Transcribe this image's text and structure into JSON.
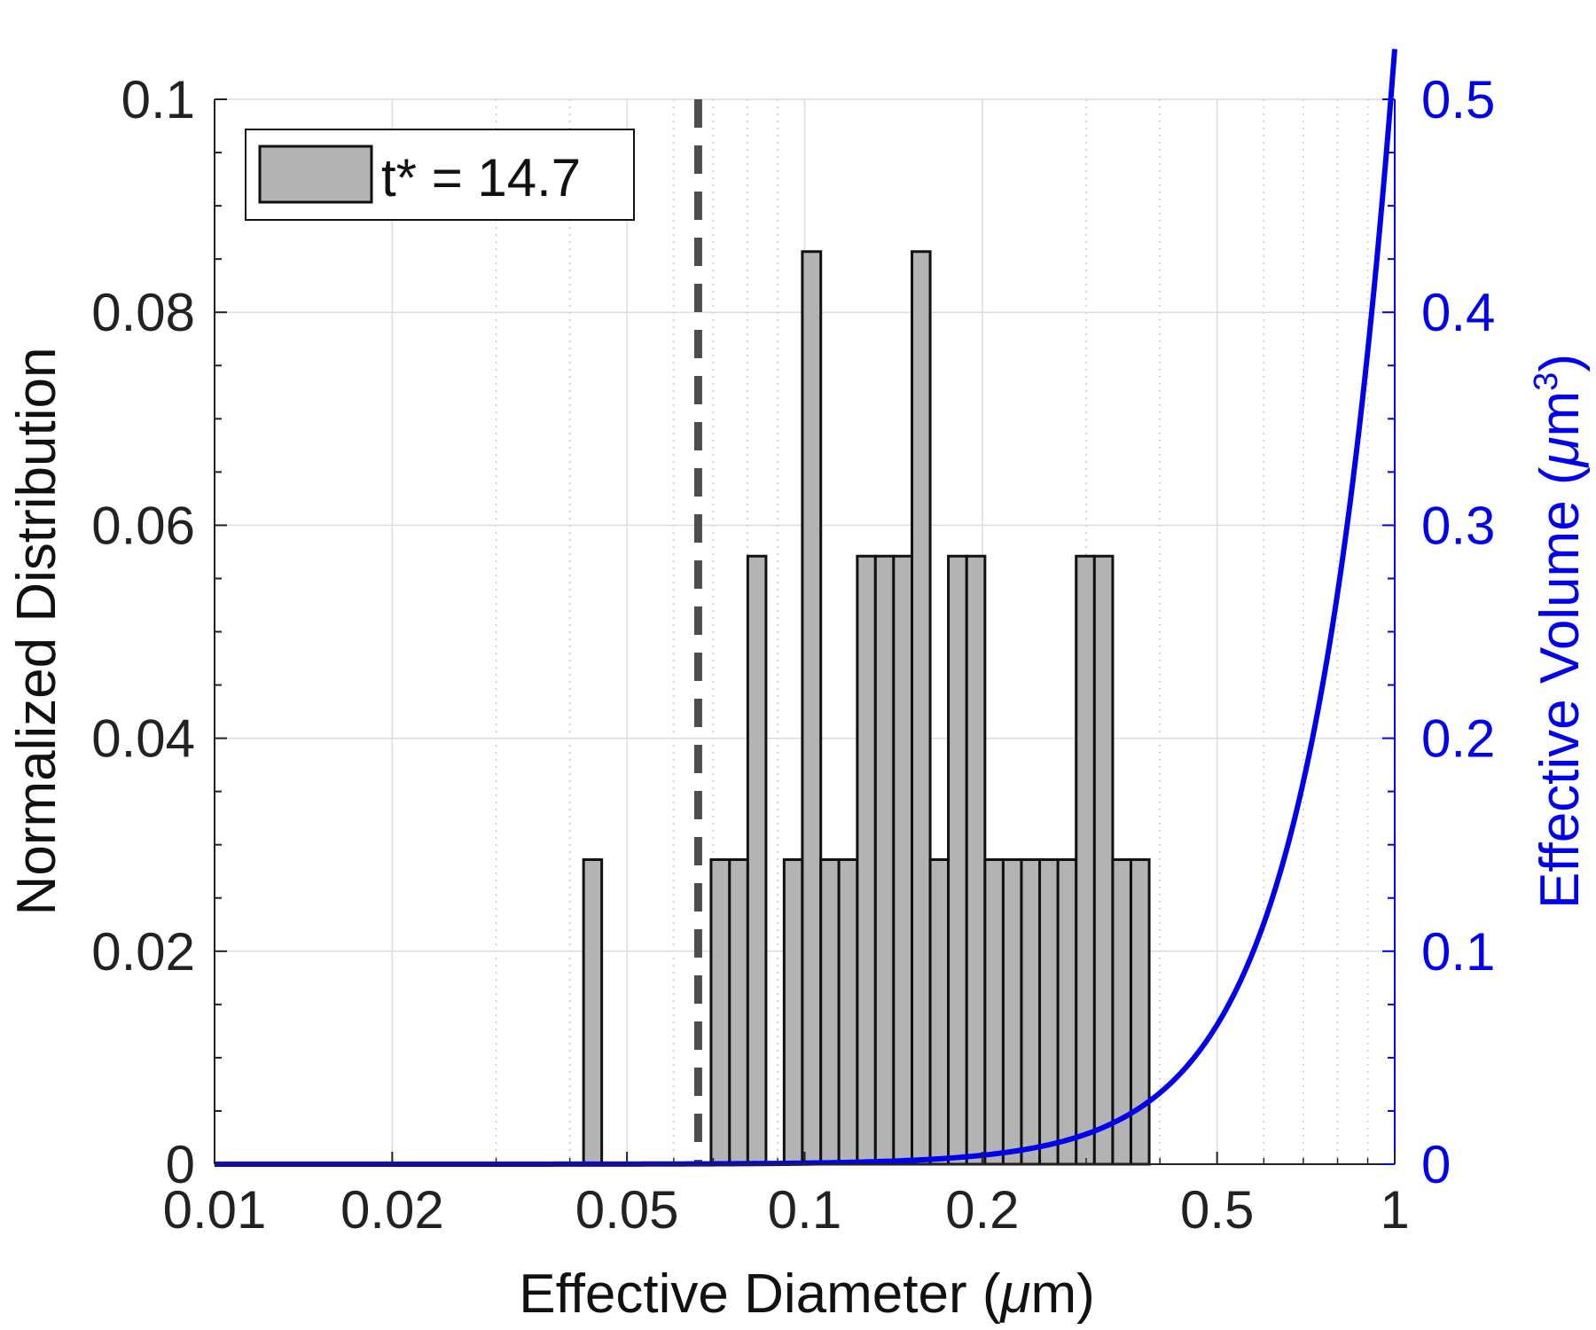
{
  "chart_data": {
    "type": "bar",
    "x_scale": "log",
    "xlim": [
      0.01,
      1
    ],
    "ylim": [
      0,
      0.1
    ],
    "y2lim": [
      0,
      0.5
    ],
    "grid": true,
    "legend_placement": "top-left",
    "xlabel_text": "Effective Diameter (",
    "xlabel_mu": "μ",
    "xlabel_tail": "m)",
    "ylabel": "Normalized Distribution",
    "y2label_text": "Effective Volume (",
    "y2label_mu": "μ",
    "y2label_unit": "m",
    "y2label_exp": "3",
    "y2label_tail": ")",
    "x_ticks": [
      0.01,
      0.02,
      0.05,
      0.1,
      0.2,
      0.5,
      1
    ],
    "x_tick_labels": [
      "0.01",
      "0.02",
      "0.05",
      "0.1",
      "0.2",
      "0.5",
      "1"
    ],
    "y_ticks": [
      0,
      0.02,
      0.04,
      0.06,
      0.08,
      0.1
    ],
    "y_tick_labels": [
      "0",
      "0.02",
      "0.04",
      "0.06",
      "0.08",
      "0.1"
    ],
    "y2_ticks": [
      0,
      0.1,
      0.2,
      0.3,
      0.4,
      0.5
    ],
    "y2_tick_labels": [
      "0",
      "0.1",
      "0.2",
      "0.3",
      "0.4",
      "0.5"
    ],
    "series": [
      {
        "name": "t* = 14.7",
        "type": "histogram",
        "bin_edges": [
          0.0422,
          0.0453,
          0.0486,
          0.0522,
          0.0561,
          0.0602,
          0.0647,
          0.0694,
          0.0746,
          0.0801,
          0.086,
          0.0923,
          0.0991,
          0.1065,
          0.1143,
          0.1228,
          0.1318,
          0.1415,
          0.152,
          0.1632,
          0.1752,
          0.1882,
          0.2021,
          0.217,
          0.233,
          0.2502,
          0.2687,
          0.2885,
          0.3098,
          0.3327,
          0.3572,
          0.3836
        ],
        "values": [
          0.0286,
          0,
          0,
          0,
          0,
          0,
          0,
          0.0286,
          0.0286,
          0.0571,
          0,
          0.0286,
          0.0857,
          0.0286,
          0.0286,
          0.0571,
          0.0571,
          0.0571,
          0.0857,
          0.0286,
          0.0571,
          0.0571,
          0.0286,
          0.0286,
          0.0286,
          0.0286,
          0.0286,
          0.0571,
          0.0571,
          0.0286,
          0.0286
        ],
        "color": "#b3b3b3",
        "edge_color": "#111111"
      },
      {
        "type": "line",
        "axis": "right",
        "formula": "V = (pi/6) * d^3",
        "color": "#0000ee"
      },
      {
        "type": "vertical-line",
        "style": "dashed",
        "x": 0.066,
        "color": "#4d4d4d"
      }
    ]
  }
}
